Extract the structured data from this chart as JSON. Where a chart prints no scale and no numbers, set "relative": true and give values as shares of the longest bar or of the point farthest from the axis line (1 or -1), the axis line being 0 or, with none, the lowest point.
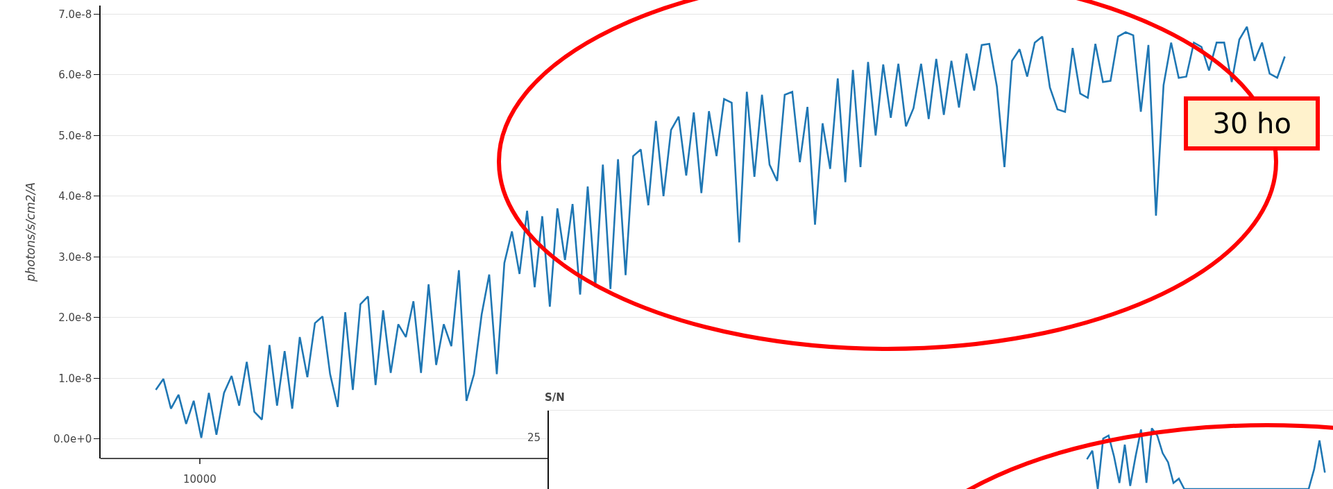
{
  "chart_data": [
    {
      "type": "line",
      "ylabel": "photons/s/cm2/A",
      "grid": "y",
      "categories": [
        null,
        null,
        null,
        null,
        null,
        null,
        null,
        null,
        null,
        null,
        null,
        null,
        null,
        null,
        null,
        null,
        null,
        null,
        null,
        null,
        null,
        null,
        null,
        null,
        null,
        null,
        null,
        null,
        null,
        null,
        null,
        null,
        null,
        null,
        null,
        null,
        null,
        null,
        null,
        null,
        null,
        null,
        null,
        null,
        null,
        null,
        null,
        null,
        null,
        null,
        null,
        null,
        null,
        null,
        null,
        null,
        null,
        null,
        null,
        null,
        null,
        null,
        null,
        null,
        null,
        null,
        null,
        null,
        null,
        null,
        null,
        null,
        null,
        null,
        null,
        null,
        null,
        null,
        null,
        null,
        null,
        null,
        null,
        null,
        null,
        null,
        null,
        null,
        null,
        null,
        null,
        null,
        null,
        null,
        null,
        null,
        null,
        null,
        null,
        null,
        null,
        null,
        null,
        null,
        null,
        null,
        null,
        null,
        null,
        null,
        null,
        null,
        null,
        null,
        null,
        null,
        null,
        null,
        null,
        null,
        null,
        null,
        null,
        null,
        null,
        null,
        null,
        null,
        null,
        null,
        null,
        null,
        null,
        null,
        null,
        null,
        null,
        null,
        null,
        null,
        null,
        null,
        null,
        null,
        null,
        null,
        null,
        null,
        null,
        null
      ],
      "series": [
        {
          "color": "#1f77b4",
          "values": [
            8.1e-09,
            9.9e-09,
            5e-09,
            7.3e-09,
            2.5e-09,
            6.3e-09,
            2e-10,
            7.6e-09,
            7e-10,
            7.6e-09,
            1.04e-08,
            5.5e-09,
            1.27e-08,
            4.5e-09,
            3.2e-09,
            1.55e-08,
            5.5e-09,
            1.45e-08,
            5e-09,
            1.68e-08,
            1.02e-08,
            1.91e-08,
            2.02e-08,
            1.07e-08,
            5.3e-09,
            2.09e-08,
            8.1e-09,
            2.22e-08,
            2.35e-08,
            8.9e-09,
            2.12e-08,
            1.09e-08,
            1.89e-08,
            1.68e-08,
            2.27e-08,
            1.09e-08,
            2.55e-08,
            1.22e-08,
            1.89e-08,
            1.53e-08,
            2.78e-08,
            6.3e-09,
            1.07e-08,
            2.05e-08,
            2.71e-08,
            1.07e-08,
            2.9e-08,
            3.42e-08,
            2.72e-08,
            3.76e-08,
            2.5e-08,
            3.67e-08,
            2.18e-08,
            3.8e-08,
            2.95e-08,
            3.87e-08,
            2.38e-08,
            4.16e-08,
            2.5e-08,
            4.52e-08,
            2.47e-08,
            4.61e-08,
            2.7e-08,
            4.66e-08,
            4.77e-08,
            3.85e-08,
            5.24e-08,
            4e-08,
            5.09e-08,
            5.31e-08,
            4.34e-08,
            5.38e-08,
            4.05e-08,
            5.4e-08,
            4.66e-08,
            5.6e-08,
            5.54e-08,
            3.24e-08,
            5.72e-08,
            4.32e-08,
            5.67e-08,
            4.52e-08,
            4.25e-08,
            5.67e-08,
            5.72e-08,
            4.56e-08,
            5.47e-08,
            3.53e-08,
            5.2e-08,
            4.45e-08,
            5.94e-08,
            4.23e-08,
            6.08e-08,
            4.48e-08,
            6.21e-08,
            5e-08,
            6.17e-08,
            5.29e-08,
            6.18e-08,
            5.15e-08,
            5.45e-08,
            6.18e-08,
            5.27e-08,
            6.26e-08,
            5.34e-08,
            6.23e-08,
            5.46e-08,
            6.35e-08,
            5.74e-08,
            6.49e-08,
            6.51e-08,
            5.81e-08,
            4.48e-08,
            6.23e-08,
            6.42e-08,
            5.97e-08,
            6.53e-08,
            6.63e-08,
            5.79e-08,
            5.43e-08,
            5.39e-08,
            6.44e-08,
            5.69e-08,
            5.62e-08,
            6.51e-08,
            5.88e-08,
            5.9e-08,
            6.63e-08,
            6.7e-08,
            6.65e-08,
            5.39e-08,
            6.49e-08,
            3.68e-08,
            5.83e-08,
            6.53e-08,
            5.95e-08,
            5.97e-08,
            6.53e-08,
            6.46e-08,
            6.07e-08,
            6.53e-08,
            6.53e-08,
            5.88e-08,
            6.58e-08,
            6.79e-08,
            6.23e-08,
            6.53e-08,
            6.02e-08,
            5.95e-08,
            6.3e-08
          ]
        }
      ],
      "ylim": [
        -3.2e-09,
        7.14e-08
      ],
      "yticks": [
        {
          "value": 0,
          "label": "0.0e+0"
        },
        {
          "value": 1e-08,
          "label": "1.0e-8"
        },
        {
          "value": 2e-08,
          "label": "2.0e-8"
        },
        {
          "value": 3e-08,
          "label": "3.0e-8"
        },
        {
          "value": 4e-08,
          "label": "4.0e-8"
        },
        {
          "value": 5e-08,
          "label": "5.0e-8"
        },
        {
          "value": 6e-08,
          "label": "6.0e-8"
        },
        {
          "value": 7e-08,
          "label": "7.0e-8"
        }
      ],
      "annotations": [
        "30 ho",
        "10000"
      ]
    },
    {
      "type": "line",
      "title": "S/N",
      "relative": true,
      "categories": [
        null,
        null,
        null,
        null,
        null,
        null,
        null,
        null,
        null,
        null,
        null,
        null,
        null,
        null,
        null,
        null,
        null,
        null,
        null,
        null,
        null,
        null,
        null,
        null,
        null,
        null,
        null,
        null,
        null,
        null,
        null,
        null,
        null,
        null,
        null,
        null,
        null,
        null,
        null,
        null,
        null,
        null,
        null,
        null,
        null,
        null,
        null,
        null,
        null,
        null,
        null,
        null,
        null,
        null,
        null,
        null,
        null,
        null,
        null,
        null,
        null,
        null,
        null,
        null,
        null,
        null,
        null,
        null,
        null,
        null,
        null,
        null,
        null,
        null,
        null,
        null,
        null,
        null,
        null,
        null,
        null,
        null,
        null,
        null,
        null,
        null,
        null,
        null,
        null,
        null,
        null,
        null,
        null,
        null,
        null,
        null,
        null,
        null,
        null,
        null,
        null,
        null,
        null,
        null,
        null,
        null,
        null,
        null,
        null,
        null,
        null,
        null,
        null,
        null,
        null,
        null,
        null,
        null,
        null,
        null,
        null,
        null,
        null,
        null,
        null,
        null,
        null,
        null,
        null,
        null,
        null,
        null,
        null,
        null,
        null,
        null,
        null,
        null,
        null,
        null,
        null,
        null,
        null,
        null,
        null
      ],
      "series": [
        {
          "color": "#1f77b4",
          "values": [
            null,
            null,
            null,
            null,
            null,
            null,
            null,
            null,
            null,
            null,
            null,
            null,
            null,
            null,
            null,
            null,
            null,
            null,
            null,
            null,
            null,
            null,
            null,
            null,
            null,
            null,
            null,
            null,
            null,
            null,
            null,
            null,
            null,
            null,
            null,
            null,
            null,
            null,
            null,
            null,
            null,
            null,
            null,
            null,
            null,
            null,
            null,
            null,
            null,
            null,
            null,
            null,
            null,
            null,
            null,
            null,
            null,
            null,
            null,
            null,
            null,
            null,
            null,
            null,
            null,
            null,
            null,
            null,
            null,
            null,
            null,
            null,
            null,
            null,
            null,
            null,
            null,
            null,
            null,
            null,
            null,
            null,
            null,
            null,
            null,
            null,
            null,
            null,
            null,
            null,
            null,
            null,
            null,
            null,
            null,
            null,
            null,
            null,
            null,
            0.49,
            0.63,
            0,
            0.83,
            0.88,
            0.54,
            0.1,
            0.73,
            0.05,
            0.54,
            0.98,
            0.1,
            1,
            0.88,
            0.59,
            0.44,
            0.1,
            0.17,
            0,
            0,
            0,
            0,
            0,
            0,
            0,
            0,
            0,
            0,
            0,
            0,
            0,
            0,
            0,
            0,
            0,
            0,
            0,
            0,
            0,
            0,
            0,
            0,
            0.32,
            0.8,
            0.27,
            null
          ]
        }
      ],
      "annotations": [
        "25"
      ]
    }
  ]
}
